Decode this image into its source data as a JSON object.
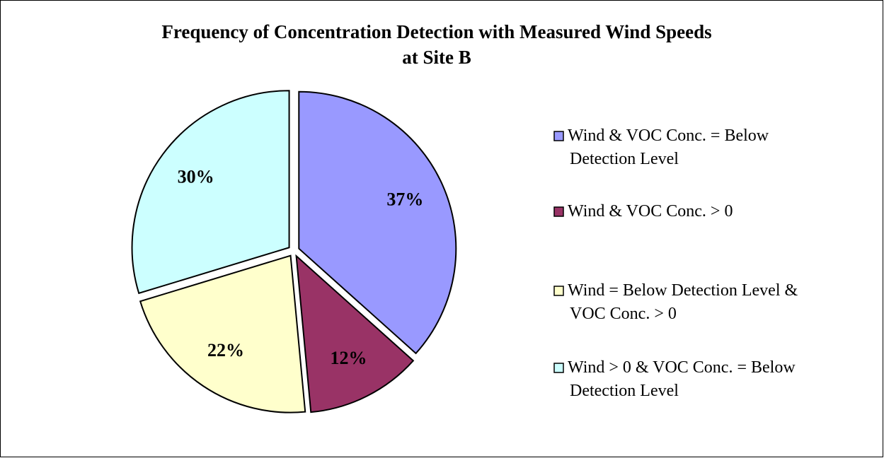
{
  "chart_data": {
    "type": "pie",
    "title": [
      "Frequency of Concentration Detection with Measured Wind Speeds",
      "at Site B"
    ],
    "categories": [
      "Wind & VOC Conc. = Below Detection Level",
      "Wind & VOC Conc. > 0",
      "Wind = Below Detection Level & VOC Conc. > 0",
      "Wind > 0 & VOC Conc. = Below Detection Level"
    ],
    "values": [
      37,
      12,
      22,
      30
    ],
    "value_labels": [
      "37%",
      "12%",
      "22%",
      "30%"
    ],
    "colors": [
      "#9999ff",
      "#993366",
      "#ffffcc",
      "#ccffff"
    ],
    "legend": "right"
  }
}
